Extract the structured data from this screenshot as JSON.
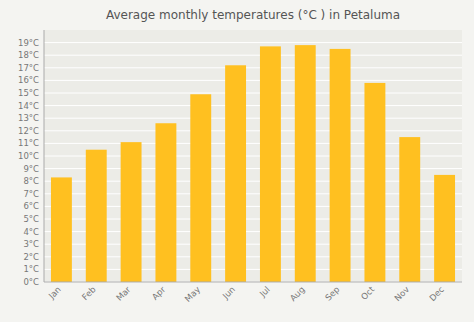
{
  "chart_data": {
    "type": "bar",
    "title": "Average monthly temperatures (°C ) in Petaluma",
    "categories": [
      "Jan",
      "Feb",
      "Mar",
      "Apr",
      "May",
      "Jun",
      "Jul",
      "Aug",
      "Sep",
      "Oct",
      "Nov",
      "Dec"
    ],
    "values": [
      8.3,
      10.5,
      11.1,
      12.6,
      14.9,
      17.2,
      18.7,
      18.8,
      18.5,
      15.8,
      11.5,
      8.5
    ],
    "color": "#FFC020",
    "ylim": [
      0,
      20
    ],
    "yticks": [
      {
        "value": 0,
        "label": "0°C"
      },
      {
        "value": 1,
        "label": "1°C"
      },
      {
        "value": 2,
        "label": "2°C"
      },
      {
        "value": 3,
        "label": "3°C"
      },
      {
        "value": 4,
        "label": "4°C"
      },
      {
        "value": 5,
        "label": "5°C"
      },
      {
        "value": 6,
        "label": "6°C"
      },
      {
        "value": 7,
        "label": "7°C"
      },
      {
        "value": 8,
        "label": "8°C"
      },
      {
        "value": 9,
        "label": "9°C"
      },
      {
        "value": 10,
        "label": "10°C"
      },
      {
        "value": 11,
        "label": "11°C"
      },
      {
        "value": 12,
        "label": "12°C"
      },
      {
        "value": 13,
        "label": "13°C"
      },
      {
        "value": 14,
        "label": "14°C"
      },
      {
        "value": 15,
        "label": "15°C"
      },
      {
        "value": 16,
        "label": "16°C"
      },
      {
        "value": 17,
        "label": "17°C"
      },
      {
        "value": 18,
        "label": "18°C"
      },
      {
        "value": 19,
        "label": "19°C"
      }
    ],
    "grid": true
  }
}
